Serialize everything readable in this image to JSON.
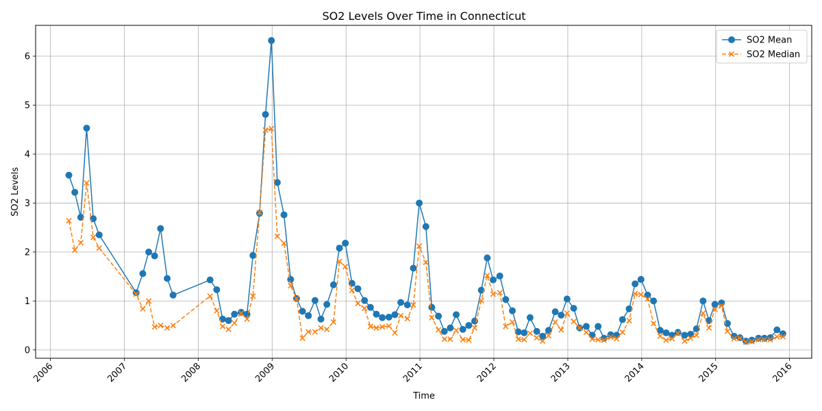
{
  "chart_data": {
    "type": "line",
    "title": "SO2 Levels Over Time in Connecticut",
    "xlabel": "Time",
    "ylabel": "SO2 Levels",
    "xlim": [
      2005.8,
      2016.3
    ],
    "ylim": [
      -0.17,
      6.63
    ],
    "x_ticks": [
      "2006",
      "2007",
      "2008",
      "2009",
      "2010",
      "2011",
      "2012",
      "2013",
      "2014",
      "2015",
      "2016"
    ],
    "y_ticks": [
      "0",
      "1",
      "2",
      "3",
      "4",
      "5",
      "6"
    ],
    "grid": true,
    "legend_position": "top-right",
    "series": [
      {
        "name": "SO2 Mean",
        "color": "#1f77b4",
        "marker": "circle",
        "line_style": "solid",
        "points": [
          [
            2006.25,
            3.57
          ],
          [
            2006.33,
            3.22
          ],
          [
            2006.41,
            2.71
          ],
          [
            2006.49,
            4.53
          ],
          [
            2006.58,
            2.68
          ],
          [
            2006.66,
            2.35
          ],
          [
            2007.16,
            1.17
          ],
          [
            2007.25,
            1.56
          ],
          [
            2007.33,
            2.0
          ],
          [
            2007.41,
            1.92
          ],
          [
            2007.49,
            2.48
          ],
          [
            2007.58,
            1.46
          ],
          [
            2007.66,
            1.12
          ],
          [
            2008.16,
            1.43
          ],
          [
            2008.25,
            1.23
          ],
          [
            2008.33,
            0.63
          ],
          [
            2008.41,
            0.6
          ],
          [
            2008.49,
            0.73
          ],
          [
            2008.58,
            0.77
          ],
          [
            2008.66,
            0.73
          ],
          [
            2008.74,
            1.93
          ],
          [
            2008.83,
            2.79
          ],
          [
            2008.91,
            4.81
          ],
          [
            2008.99,
            6.32
          ],
          [
            2009.07,
            3.42
          ],
          [
            2009.16,
            2.76
          ],
          [
            2009.25,
            1.44
          ],
          [
            2009.33,
            1.05
          ],
          [
            2009.41,
            0.79
          ],
          [
            2009.49,
            0.7
          ],
          [
            2009.58,
            1.01
          ],
          [
            2009.66,
            0.63
          ],
          [
            2009.74,
            0.93
          ],
          [
            2009.83,
            1.33
          ],
          [
            2009.91,
            2.08
          ],
          [
            2009.99,
            2.18
          ],
          [
            2010.08,
            1.36
          ],
          [
            2010.16,
            1.25
          ],
          [
            2010.25,
            1.01
          ],
          [
            2010.33,
            0.87
          ],
          [
            2010.41,
            0.73
          ],
          [
            2010.49,
            0.66
          ],
          [
            2010.58,
            0.67
          ],
          [
            2010.66,
            0.72
          ],
          [
            2010.74,
            0.97
          ],
          [
            2010.83,
            0.92
          ],
          [
            2010.91,
            1.67
          ],
          [
            2010.99,
            3.0
          ],
          [
            2011.08,
            2.52
          ],
          [
            2011.16,
            0.87
          ],
          [
            2011.25,
            0.69
          ],
          [
            2011.33,
            0.38
          ],
          [
            2011.41,
            0.45
          ],
          [
            2011.49,
            0.72
          ],
          [
            2011.58,
            0.42
          ],
          [
            2011.66,
            0.5
          ],
          [
            2011.74,
            0.59
          ],
          [
            2011.83,
            1.22
          ],
          [
            2011.91,
            1.88
          ],
          [
            2011.99,
            1.43
          ],
          [
            2012.08,
            1.51
          ],
          [
            2012.16,
            1.03
          ],
          [
            2012.25,
            0.8
          ],
          [
            2012.33,
            0.37
          ],
          [
            2012.41,
            0.35
          ],
          [
            2012.49,
            0.66
          ],
          [
            2012.58,
            0.38
          ],
          [
            2012.66,
            0.28
          ],
          [
            2012.74,
            0.4
          ],
          [
            2012.83,
            0.78
          ],
          [
            2012.91,
            0.71
          ],
          [
            2012.99,
            1.04
          ],
          [
            2013.08,
            0.85
          ],
          [
            2013.16,
            0.45
          ],
          [
            2013.25,
            0.48
          ],
          [
            2013.33,
            0.3
          ],
          [
            2013.41,
            0.48
          ],
          [
            2013.49,
            0.24
          ],
          [
            2013.58,
            0.31
          ],
          [
            2013.66,
            0.3
          ],
          [
            2013.74,
            0.62
          ],
          [
            2013.83,
            0.84
          ],
          [
            2013.91,
            1.35
          ],
          [
            2013.99,
            1.44
          ],
          [
            2014.08,
            1.12
          ],
          [
            2014.16,
            1.0
          ],
          [
            2014.25,
            0.4
          ],
          [
            2014.33,
            0.35
          ],
          [
            2014.41,
            0.3
          ],
          [
            2014.49,
            0.36
          ],
          [
            2014.58,
            0.3
          ],
          [
            2014.66,
            0.32
          ],
          [
            2014.74,
            0.43
          ],
          [
            2014.83,
            1.0
          ],
          [
            2014.91,
            0.6
          ],
          [
            2014.99,
            0.93
          ],
          [
            2015.08,
            0.96
          ],
          [
            2015.16,
            0.54
          ],
          [
            2015.25,
            0.28
          ],
          [
            2015.33,
            0.25
          ],
          [
            2015.41,
            0.18
          ],
          [
            2015.49,
            0.2
          ],
          [
            2015.58,
            0.24
          ],
          [
            2015.66,
            0.24
          ],
          [
            2015.74,
            0.25
          ],
          [
            2015.83,
            0.41
          ],
          [
            2015.91,
            0.33
          ]
        ]
      },
      {
        "name": "SO2 Median",
        "color": "#ff7f0e",
        "marker": "x",
        "line_style": "dashed",
        "points": [
          [
            2006.25,
            2.64
          ],
          [
            2006.33,
            2.04
          ],
          [
            2006.41,
            2.19
          ],
          [
            2006.49,
            3.41
          ],
          [
            2006.58,
            2.3
          ],
          [
            2006.66,
            2.08
          ],
          [
            2007.16,
            1.14
          ],
          [
            2007.25,
            0.84
          ],
          [
            2007.33,
            1.0
          ],
          [
            2007.41,
            0.47
          ],
          [
            2007.49,
            0.5
          ],
          [
            2007.58,
            0.45
          ],
          [
            2007.66,
            0.5
          ],
          [
            2008.16,
            1.1
          ],
          [
            2008.25,
            0.8
          ],
          [
            2008.33,
            0.48
          ],
          [
            2008.41,
            0.42
          ],
          [
            2008.49,
            0.55
          ],
          [
            2008.58,
            0.75
          ],
          [
            2008.66,
            0.63
          ],
          [
            2008.74,
            1.1
          ],
          [
            2008.83,
            2.81
          ],
          [
            2008.91,
            4.49
          ],
          [
            2008.99,
            4.52
          ],
          [
            2009.07,
            2.32
          ],
          [
            2009.16,
            2.18
          ],
          [
            2009.25,
            1.31
          ],
          [
            2009.33,
            1.05
          ],
          [
            2009.41,
            0.24
          ],
          [
            2009.49,
            0.37
          ],
          [
            2009.58,
            0.37
          ],
          [
            2009.66,
            0.45
          ],
          [
            2009.74,
            0.42
          ],
          [
            2009.83,
            0.57
          ],
          [
            2009.91,
            1.81
          ],
          [
            2009.99,
            1.7
          ],
          [
            2010.08,
            1.22
          ],
          [
            2010.16,
            0.95
          ],
          [
            2010.25,
            0.85
          ],
          [
            2010.33,
            0.48
          ],
          [
            2010.41,
            0.45
          ],
          [
            2010.49,
            0.47
          ],
          [
            2010.58,
            0.49
          ],
          [
            2010.66,
            0.35
          ],
          [
            2010.74,
            0.7
          ],
          [
            2010.83,
            0.64
          ],
          [
            2010.91,
            0.92
          ],
          [
            2010.99,
            2.12
          ],
          [
            2011.08,
            1.79
          ],
          [
            2011.16,
            0.66
          ],
          [
            2011.25,
            0.41
          ],
          [
            2011.33,
            0.22
          ],
          [
            2011.41,
            0.22
          ],
          [
            2011.49,
            0.4
          ],
          [
            2011.58,
            0.21
          ],
          [
            2011.66,
            0.2
          ],
          [
            2011.74,
            0.45
          ],
          [
            2011.83,
            1.01
          ],
          [
            2011.91,
            1.52
          ],
          [
            2011.99,
            1.14
          ],
          [
            2012.08,
            1.17
          ],
          [
            2012.16,
            0.48
          ],
          [
            2012.25,
            0.57
          ],
          [
            2012.33,
            0.22
          ],
          [
            2012.41,
            0.21
          ],
          [
            2012.49,
            0.34
          ],
          [
            2012.58,
            0.25
          ],
          [
            2012.66,
            0.18
          ],
          [
            2012.74,
            0.29
          ],
          [
            2012.83,
            0.57
          ],
          [
            2012.91,
            0.41
          ],
          [
            2012.99,
            0.75
          ],
          [
            2013.08,
            0.58
          ],
          [
            2013.16,
            0.45
          ],
          [
            2013.25,
            0.36
          ],
          [
            2013.33,
            0.22
          ],
          [
            2013.41,
            0.21
          ],
          [
            2013.49,
            0.2
          ],
          [
            2013.58,
            0.26
          ],
          [
            2013.66,
            0.23
          ],
          [
            2013.74,
            0.36
          ],
          [
            2013.83,
            0.6
          ],
          [
            2013.91,
            1.15
          ],
          [
            2013.99,
            1.13
          ],
          [
            2014.08,
            1.04
          ],
          [
            2014.16,
            0.54
          ],
          [
            2014.25,
            0.28
          ],
          [
            2014.33,
            0.2
          ],
          [
            2014.41,
            0.23
          ],
          [
            2014.49,
            0.34
          ],
          [
            2014.58,
            0.18
          ],
          [
            2014.66,
            0.24
          ],
          [
            2014.74,
            0.3
          ],
          [
            2014.83,
            0.75
          ],
          [
            2014.91,
            0.45
          ],
          [
            2014.99,
            0.83
          ],
          [
            2015.08,
            0.9
          ],
          [
            2015.16,
            0.38
          ],
          [
            2015.25,
            0.23
          ],
          [
            2015.33,
            0.24
          ],
          [
            2015.41,
            0.16
          ],
          [
            2015.49,
            0.17
          ],
          [
            2015.58,
            0.21
          ],
          [
            2015.66,
            0.21
          ],
          [
            2015.74,
            0.21
          ],
          [
            2015.83,
            0.27
          ],
          [
            2015.91,
            0.27
          ]
        ]
      }
    ]
  }
}
